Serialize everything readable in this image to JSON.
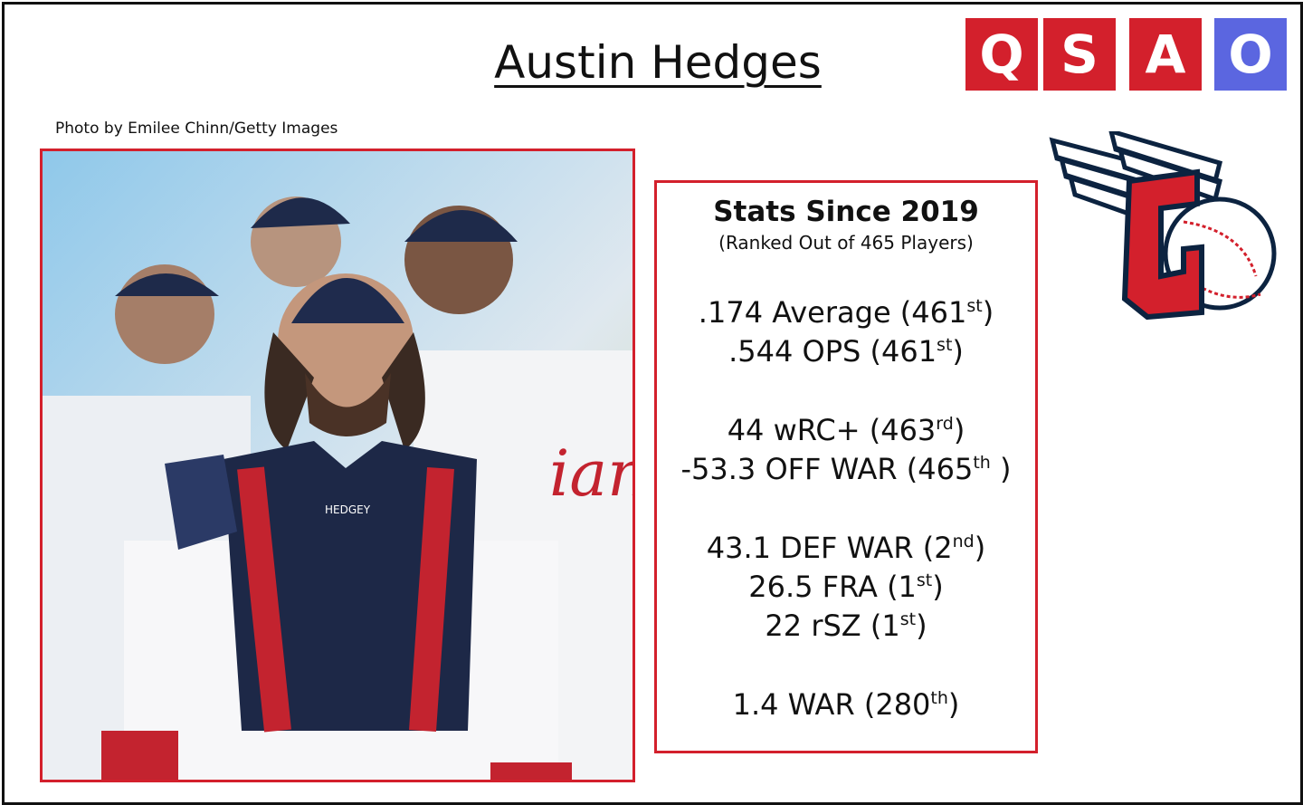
{
  "header": {
    "title": "Austin Hedges",
    "logo": [
      "Q",
      "S",
      "A",
      "O"
    ]
  },
  "photo": {
    "credit": "Photo by Emilee Chinn/Getty Images"
  },
  "stats": {
    "heading": "Stats Since 2019",
    "subheading": "(Ranked Out of 465 Players)",
    "groups": [
      {
        "lines": [
          {
            "text": ".174 Average (461",
            "sup": "st",
            "close": ")"
          },
          {
            "text": ".544 OPS (461",
            "sup": "st",
            "close": ")"
          }
        ]
      },
      {
        "lines": [
          {
            "text": "44 wRC+ (463",
            "sup": "rd",
            "close": ")"
          },
          {
            "text": "-53.3 OFF WAR (465",
            "sup": "th",
            "close": " )"
          }
        ]
      },
      {
        "lines": [
          {
            "text": "43.1 DEF WAR (2",
            "sup": "nd",
            "close": ")"
          },
          {
            "text": "26.5 FRA (1",
            "sup": "st",
            "close": ")"
          },
          {
            "text": "22 rSZ (1",
            "sup": "st",
            "close": ")"
          }
        ]
      },
      {
        "lines": [
          {
            "text": "1.4 WAR (280",
            "sup": "th",
            "close": ")"
          }
        ]
      }
    ]
  }
}
